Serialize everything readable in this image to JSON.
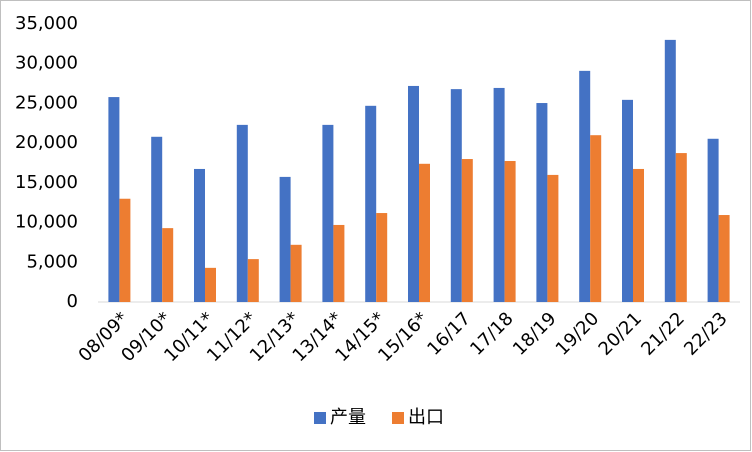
{
  "chart_data": {
    "type": "bar",
    "categories": [
      "08/09*",
      "09/10*",
      "10/11*",
      "11/12*",
      "12/13*",
      "13/14*",
      "14/15*",
      "15/16*",
      "16/17",
      "17/18",
      "18/19",
      "19/20",
      "20/21",
      "21/22",
      "22/23"
    ],
    "series": [
      {
        "name": "产量",
        "color": "#4472c4",
        "values": [
          25800,
          20800,
          16750,
          22300,
          15750,
          22300,
          24700,
          27200,
          26800,
          26950,
          25050,
          29100,
          25450,
          33000,
          20550
        ]
      },
      {
        "name": "出口",
        "color": "#ed7d31",
        "values": [
          13000,
          9300,
          4300,
          5400,
          7200,
          9700,
          11200,
          17400,
          18000,
          17750,
          16000,
          21000,
          16750,
          18750,
          10950
        ]
      }
    ],
    "ylim": [
      0,
      35000
    ],
    "yticks": [
      0,
      {
        "value": 5000,
        "label": "5,000"
      },
      {
        "value": 10000,
        "label": "10,000"
      },
      {
        "value": 15000,
        "label": "15,000"
      },
      {
        "value": 20000,
        "label": "20,000"
      },
      {
        "value": 25000,
        "label": "25,000"
      },
      {
        "value": 30000,
        "label": "30,000"
      },
      {
        "value": 35000,
        "label": "35,000"
      }
    ],
    "grid": false,
    "legend": "bottom"
  }
}
